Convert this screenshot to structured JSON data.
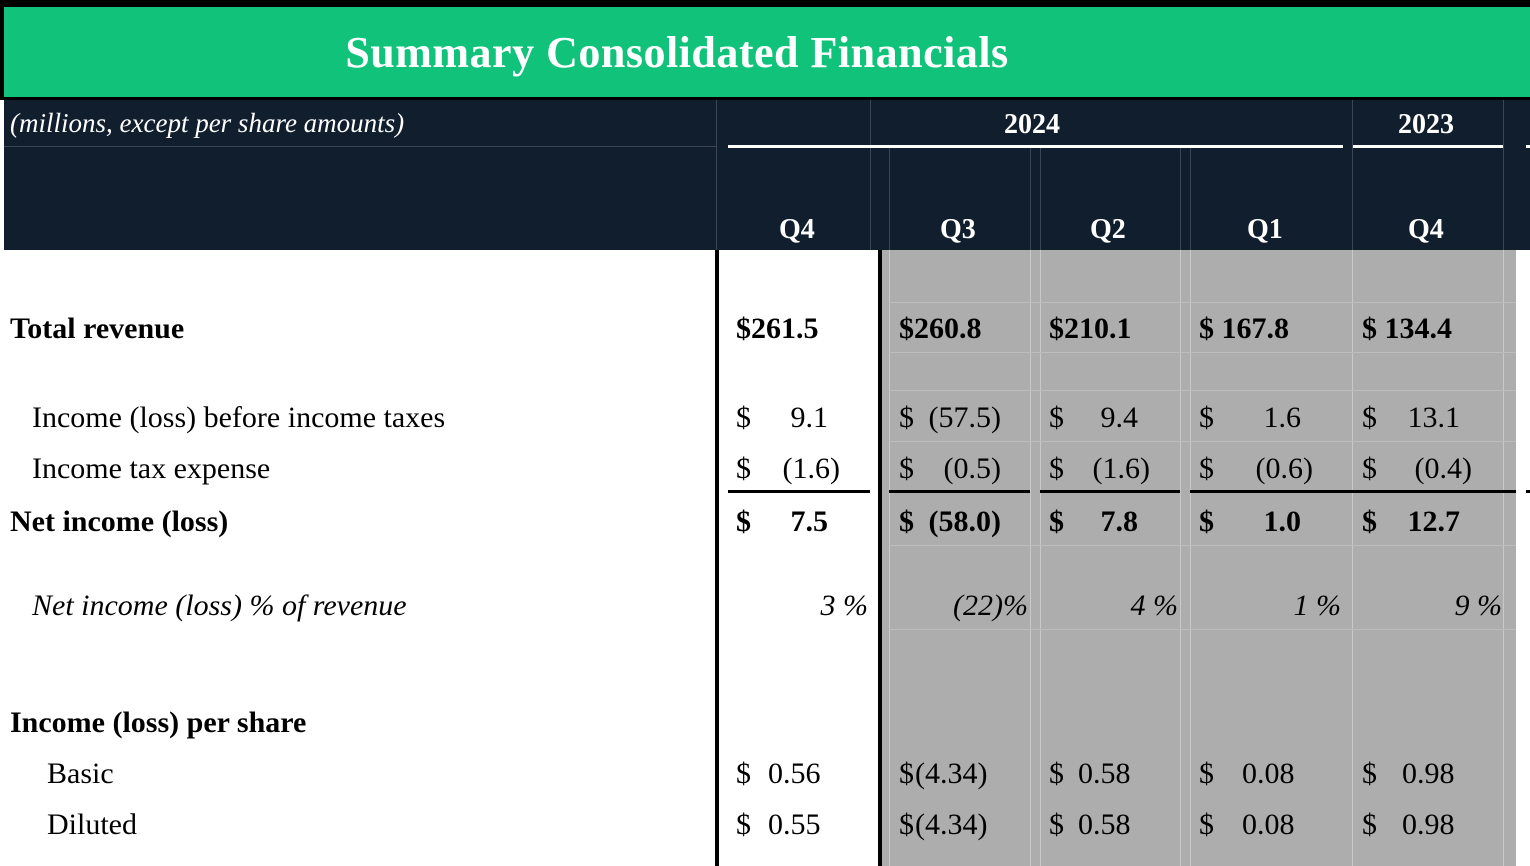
{
  "title": "Summary Consolidated Financials",
  "header": {
    "units_label": "(millions, except per share amounts)",
    "year_2024": "2024",
    "year_2023": "2023",
    "quarters": [
      "Q4",
      "Q3",
      "Q2",
      "Q1",
      "Q4"
    ]
  },
  "rows": {
    "total_revenue": {
      "label": "Total revenue",
      "values": [
        "$261.5",
        "$260.8",
        "$210.1",
        "$ 167.8",
        "$ 134.4"
      ]
    },
    "income_before_taxes": {
      "label": "Income (loss) before income taxes",
      "dollar": "$",
      "values": [
        "9.1",
        "(57.5)",
        "9.4",
        "1.6",
        "13.1"
      ]
    },
    "income_tax_expense": {
      "label": "Income tax expense",
      "dollar": "$",
      "values": [
        "(1.6)",
        "(0.5)",
        "(1.6)",
        "(0.6)",
        "(0.4)"
      ]
    },
    "net_income": {
      "label": "Net income (loss)",
      "dollar": "$",
      "values": [
        "7.5",
        "(58.0)",
        "7.8",
        "1.0",
        "12.7"
      ]
    },
    "net_income_pct": {
      "label": "Net income (loss) % of revenue",
      "values": [
        "3 %",
        "(22)%",
        "4 %",
        "1 %",
        "9 %"
      ]
    },
    "eps_heading": {
      "label": "Income (loss) per share"
    },
    "eps_basic": {
      "label": "Basic",
      "dollar": "$",
      "values": [
        "0.56",
        "(4.34)",
        "0.58",
        "0.08",
        "0.98"
      ]
    },
    "eps_diluted": {
      "label": "Diluted",
      "dollar": "$",
      "values": [
        "0.55",
        "(4.34)",
        "0.58",
        "0.08",
        "0.98"
      ]
    }
  },
  "colors": {
    "title_bg": "#10c27a",
    "header_bg": "#111e2e",
    "shade": "#adadad"
  }
}
